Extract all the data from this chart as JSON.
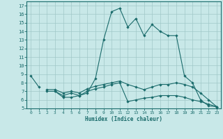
{
  "xlabel": "Humidex (Indice chaleur)",
  "bg_color": "#c8e8e8",
  "grid_color": "#a0c8c8",
  "line_color": "#1a6b6b",
  "x": [
    0,
    1,
    2,
    3,
    4,
    5,
    6,
    7,
    8,
    9,
    10,
    11,
    12,
    13,
    14,
    15,
    16,
    17,
    18,
    19,
    20,
    21,
    22,
    23
  ],
  "line1": [
    8.8,
    7.5,
    null,
    null,
    null,
    null,
    null,
    null,
    null,
    null,
    null,
    null,
    null,
    null,
    null,
    null,
    null,
    null,
    null,
    null,
    null,
    null,
    null,
    null
  ],
  "line1b": [
    null,
    null,
    null,
    7.0,
    6.3,
    6.3,
    6.5,
    6.8,
    8.5,
    13.0,
    16.3,
    16.7,
    14.5,
    15.5,
    13.5,
    14.8,
    14.0,
    13.5,
    13.5,
    8.8,
    8.0,
    6.0,
    5.3,
    5.2
  ],
  "line2": [
    null,
    null,
    7.0,
    7.0,
    6.5,
    6.8,
    6.5,
    7.0,
    7.3,
    7.5,
    7.8,
    8.0,
    5.8,
    6.0,
    6.2,
    6.3,
    6.5,
    6.5,
    6.5,
    6.3,
    6.0,
    5.8,
    5.5,
    5.2
  ],
  "line3": [
    null,
    null,
    7.2,
    7.2,
    6.8,
    7.0,
    6.8,
    7.3,
    7.6,
    7.8,
    8.0,
    8.2,
    7.8,
    7.5,
    7.2,
    7.5,
    7.8,
    7.8,
    8.0,
    7.8,
    7.5,
    6.8,
    6.0,
    5.2
  ],
  "ylim": [
    5,
    17.5
  ],
  "xlim": [
    -0.5,
    23.5
  ],
  "yticks": [
    5,
    6,
    7,
    8,
    9,
    10,
    11,
    12,
    13,
    14,
    15,
    16,
    17
  ],
  "xticks": [
    0,
    1,
    2,
    3,
    4,
    5,
    6,
    7,
    8,
    9,
    10,
    11,
    12,
    13,
    14,
    15,
    16,
    17,
    18,
    19,
    20,
    21,
    22,
    23
  ]
}
